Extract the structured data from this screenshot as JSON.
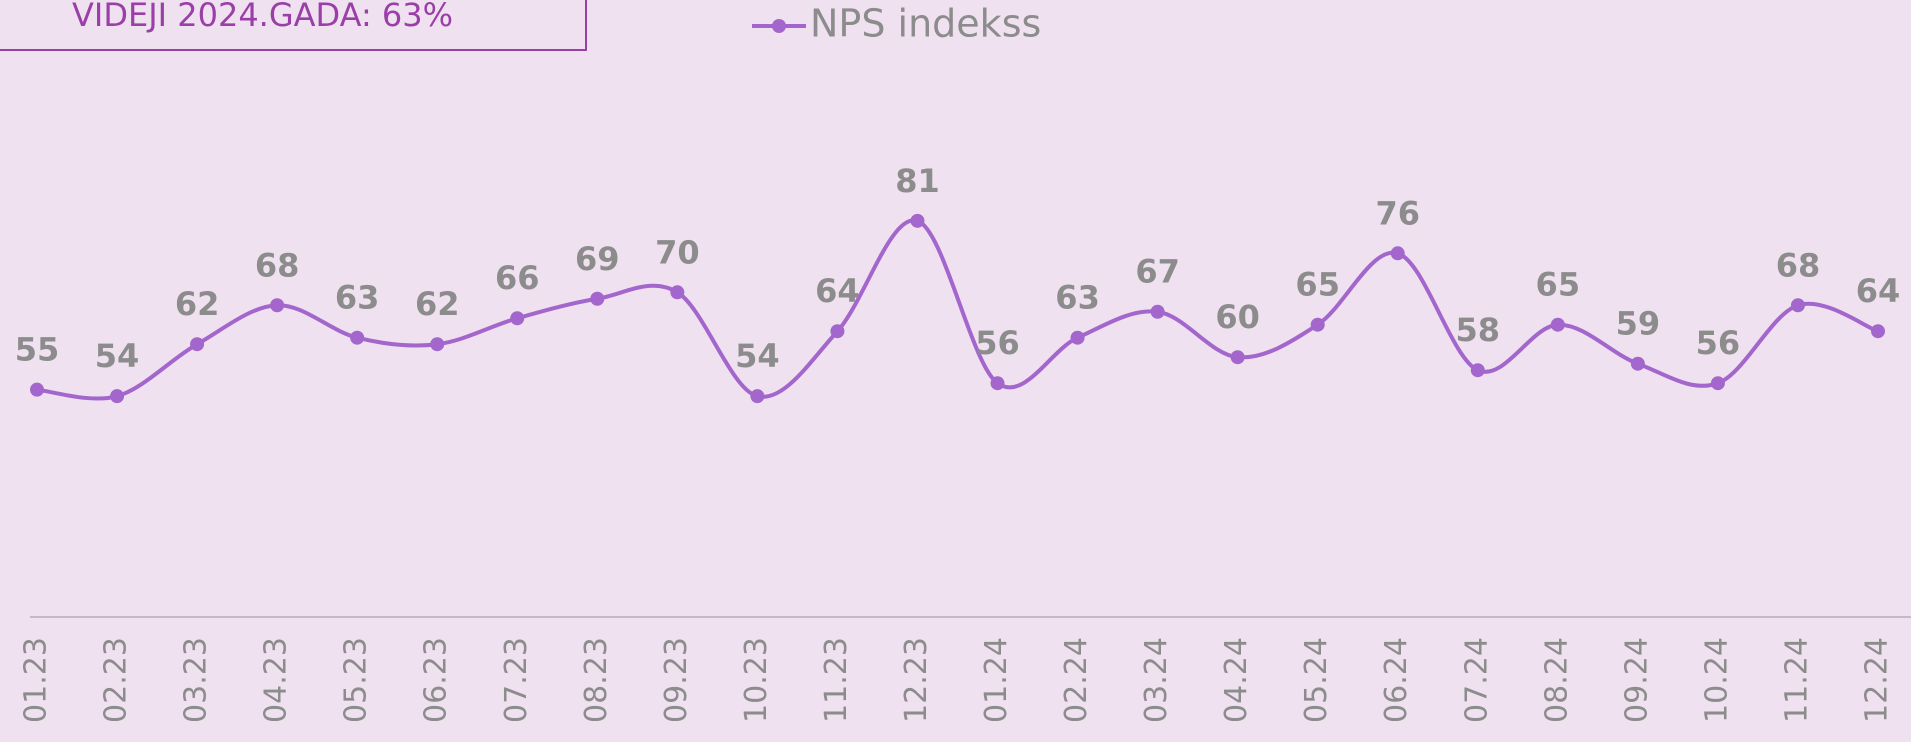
{
  "chart_data": {
    "type": "line",
    "annotation": "VIDEJI 2024.GADA: 63%",
    "categories": [
      "01.23",
      "02.23",
      "03.23",
      "04.23",
      "05.23",
      "06.23",
      "07.23",
      "08.23",
      "09.23",
      "10.23",
      "11.23",
      "12.23",
      "01.24",
      "02.24",
      "03.24",
      "04.24",
      "05.24",
      "06.24",
      "07.24",
      "08.24",
      "09.24",
      "10.24",
      "11.24",
      "12.24"
    ],
    "series": [
      {
        "name": "NPS indekss",
        "color": "#a366cc",
        "values": [
          55,
          54,
          62,
          68,
          63,
          62,
          66,
          69,
          70,
          54,
          64,
          81,
          56,
          63,
          67,
          60,
          65,
          76,
          58,
          65,
          59,
          56,
          68,
          64
        ]
      }
    ],
    "ylim": [
      20,
      115
    ],
    "smooth": true
  }
}
